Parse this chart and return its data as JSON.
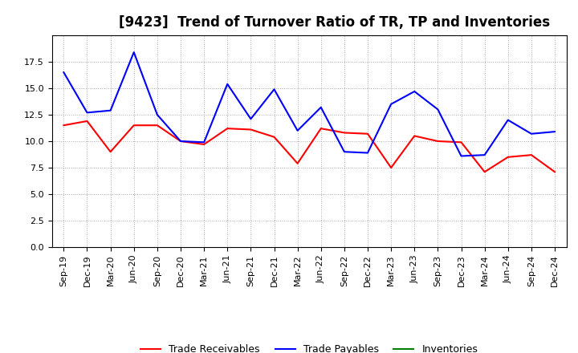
{
  "title": "[9423]  Trend of Turnover Ratio of TR, TP and Inventories",
  "x_labels": [
    "Sep-19",
    "Dec-19",
    "Mar-20",
    "Jun-20",
    "Sep-20",
    "Dec-20",
    "Mar-21",
    "Jun-21",
    "Sep-21",
    "Dec-21",
    "Mar-22",
    "Jun-22",
    "Sep-22",
    "Dec-22",
    "Mar-23",
    "Jun-23",
    "Sep-23",
    "Dec-23",
    "Mar-24",
    "Jun-24",
    "Sep-24",
    "Dec-24"
  ],
  "trade_receivables": [
    11.5,
    11.9,
    9.0,
    11.5,
    11.5,
    10.0,
    9.7,
    11.2,
    11.1,
    10.4,
    7.9,
    11.2,
    10.8,
    10.7,
    7.5,
    10.5,
    10.0,
    9.9,
    7.1,
    8.5,
    8.7,
    7.1
  ],
  "trade_payables": [
    16.5,
    12.7,
    12.9,
    18.4,
    12.5,
    10.0,
    9.9,
    15.4,
    12.1,
    14.9,
    11.0,
    13.2,
    9.0,
    8.9,
    13.5,
    14.7,
    13.0,
    8.6,
    8.7,
    12.0,
    10.7,
    10.9
  ],
  "inventories": [
    null,
    null,
    null,
    null,
    null,
    null,
    null,
    null,
    null,
    null,
    null,
    null,
    null,
    null,
    null,
    null,
    null,
    null,
    null,
    null,
    null,
    null
  ],
  "tr_color": "#ff0000",
  "tp_color": "#0000ff",
  "inv_color": "#008000",
  "ylim": [
    0,
    20
  ],
  "yticks": [
    0.0,
    2.5,
    5.0,
    7.5,
    10.0,
    12.5,
    15.0,
    17.5
  ],
  "background_color": "#ffffff",
  "grid_color": "#aaaaaa",
  "title_fontsize": 12,
  "tick_fontsize": 8,
  "legend_fontsize": 9
}
